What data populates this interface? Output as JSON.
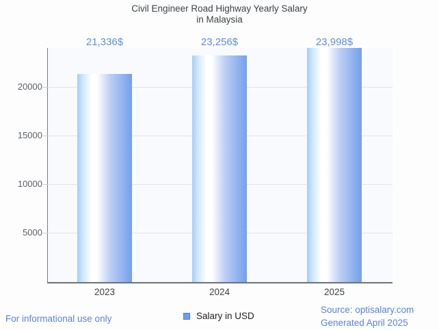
{
  "title": {
    "line1": "Civil Engineer Road Highway Yearly Salary",
    "line2": "in Malaysia"
  },
  "chart_data": {
    "type": "bar",
    "title": "Civil Engineer Road Highway Yearly Salary in Malaysia",
    "categories": [
      "2023",
      "2024",
      "2025"
    ],
    "series": [
      {
        "name": "Salary in USD",
        "values": [
          21336,
          23256,
          23998
        ]
      }
    ],
    "value_labels": [
      "21,336$",
      "23,256$",
      "23,998$"
    ],
    "xlabel": "",
    "ylabel": "",
    "ylim": [
      0,
      24000
    ],
    "yticks": [
      5000,
      10000,
      15000,
      20000
    ],
    "grid": true,
    "legend_position": "bottom",
    "colors": {
      "bar_main": "#6d9eeb",
      "bar_gradient_left": "#a3cdf8",
      "bar_gradient_mid": "#ffffff",
      "bar_gradient_right": "#73a0ea",
      "annotation_text": "#5e8ae6",
      "plot_background": "#f8fafd",
      "gridline": "#e2e4e7",
      "axis_line": "#6d7175",
      "axis_text": "#5b5e62"
    }
  },
  "legend": {
    "label": "Salary in USD",
    "swatch_color": "#6d9eeb"
  },
  "footer": {
    "disclaimer": "For informational use only",
    "source": "Source: optisalary.com",
    "generated": "Generated April 2025",
    "text_color": "#5b80e1"
  }
}
